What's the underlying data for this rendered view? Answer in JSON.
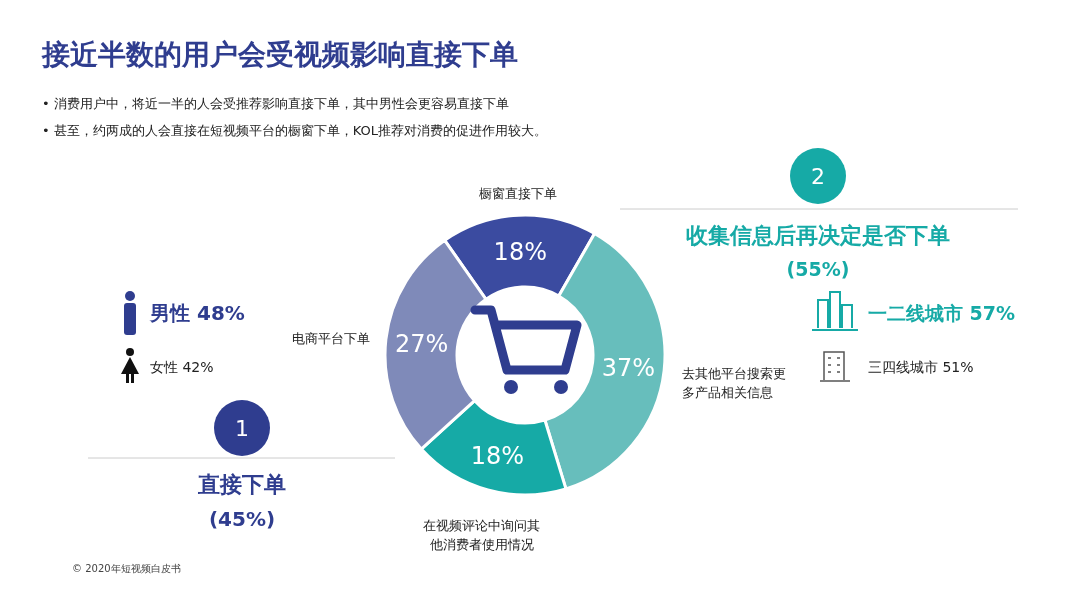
{
  "chart_data": {
    "type": "donut",
    "title": "接近半数的用户会受视频影响直接下单",
    "subtitle": "• 消费用户中，将近一半的人会受推荐影响直接下单，其中男性会更容易直接下单\n• 甚至，约两成的人会直接在短视频平台的橱窗下单，KOL推荐对消费的促进作用较大。",
    "categories": [
      "橱窗直接下单",
      "去其他平台搜索更多产品相关信息",
      "在视频评论中询问其他消费者使用情况",
      "电商平台下单"
    ],
    "values": [
      18,
      37,
      18,
      27
    ],
    "value_labels": [
      "18%",
      "37%",
      "18%",
      "27%"
    ],
    "colors": [
      "#3b4ba0",
      "#67bebc",
      "#16aaa6",
      "#7f8ab9"
    ],
    "annotations": [
      "男性 48%",
      "女性 42%",
      "1",
      "直接下单",
      "(45%)",
      "2",
      "收集信息后再决定是否下单",
      "(55%)",
      "一二线城市 57%",
      "三四线城市 51%",
      "© 2020年短视频白皮书"
    ]
  }
}
